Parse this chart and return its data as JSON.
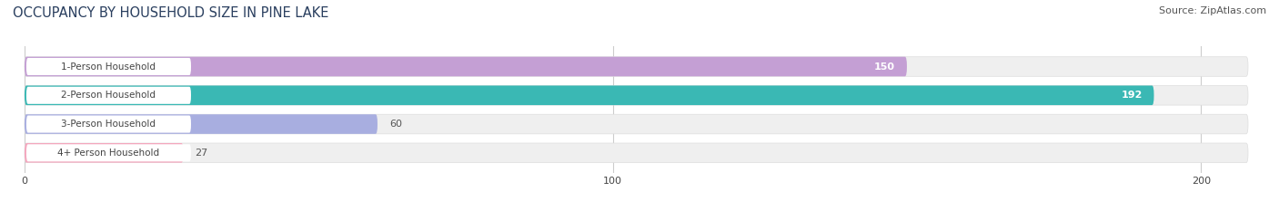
{
  "title": "OCCUPANCY BY HOUSEHOLD SIZE IN PINE LAKE",
  "source": "Source: ZipAtlas.com",
  "categories": [
    "1-Person Household",
    "2-Person Household",
    "3-Person Household",
    "4+ Person Household"
  ],
  "values": [
    150,
    192,
    60,
    27
  ],
  "bar_colors": [
    "#c49fd4",
    "#3ab8b4",
    "#a8aee0",
    "#f4a7be"
  ],
  "xlim": [
    -2,
    210
  ],
  "xticks": [
    0,
    100,
    200
  ],
  "background_color": "#ffffff",
  "bar_background_color": "#efefef",
  "title_fontsize": 10.5,
  "source_fontsize": 8,
  "label_fontsize": 7.5,
  "value_fontsize": 8
}
